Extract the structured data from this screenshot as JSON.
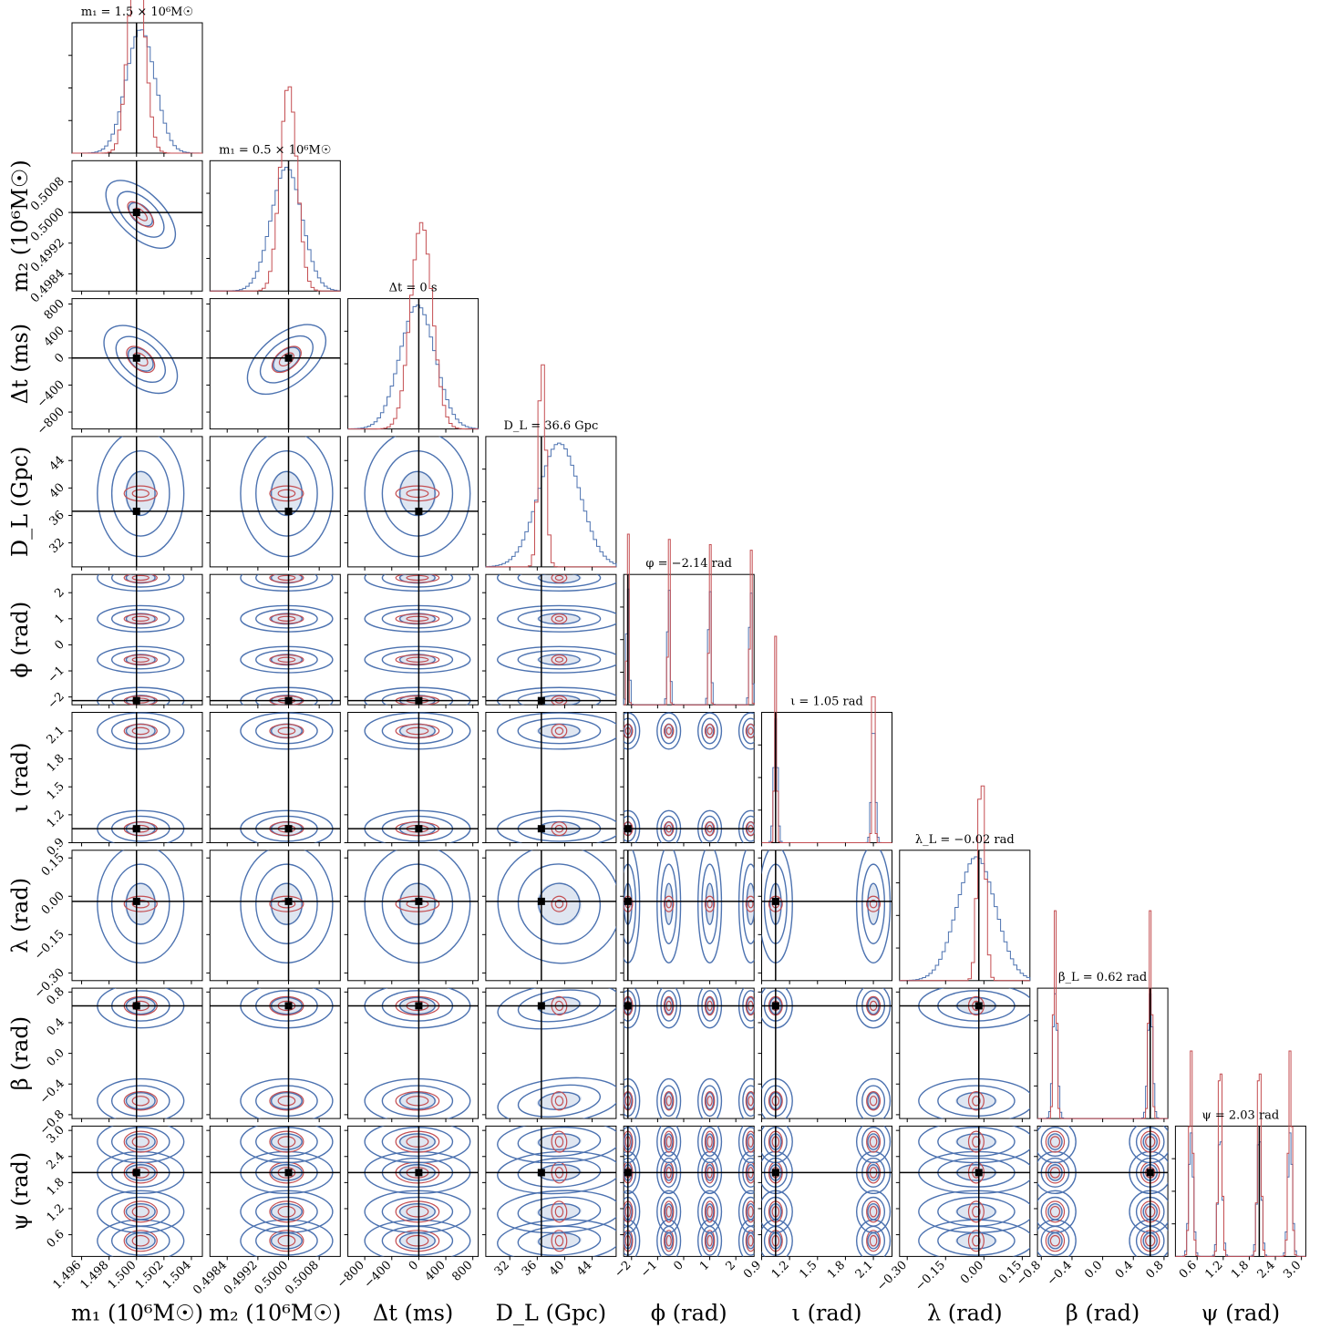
{
  "chart_data": {
    "type": "corner",
    "colors": {
      "primary": "#4c72b0",
      "secondary": "#c44e52",
      "truth": "#000000"
    },
    "params": [
      {
        "id": "m1",
        "label": "m₁ (10⁶M☉)",
        "title": "m₁ = 1.5 × 10⁶M☉",
        "truth": 1.5,
        "range": [
          1.4953,
          1.5048
        ],
        "ticks": [
          1.496,
          1.498,
          1.5,
          1.502,
          1.504
        ],
        "tick_labels": [
          "1.496",
          "1.498",
          "1.500",
          "1.502",
          "1.504"
        ],
        "mode": [
          1.5003,
          1.5
        ],
        "wide": [
          0.00105,
          0.0006
        ],
        "gauss": [
          1.5003
        ]
      },
      {
        "id": "m2",
        "label": "m₂ (10⁶M☉)",
        "title": "m₁ = 0.5 × 10⁶M☉",
        "truth": 0.5,
        "range": [
          0.49795,
          0.50135
        ],
        "ticks": [
          0.4984,
          0.4992,
          0.5,
          0.5008
        ],
        "tick_labels": [
          "0.4984",
          "0.4992",
          "0.5000",
          "0.5008"
        ],
        "mode": [
          0.49995,
          0.5
        ],
        "wide": [
          0.0004,
          0.00022
        ],
        "gauss": [
          0.49995
        ]
      },
      {
        "id": "dt",
        "label": "Δt (ms)",
        "title": "Δt = 0 s",
        "truth": 0,
        "range": [
          -1050,
          880
        ],
        "ticks": [
          -800,
          -400,
          0,
          400,
          800
        ],
        "tick_labels": [
          "−800",
          "−400",
          "0",
          "400",
          "800"
        ],
        "mode": [
          -20,
          40
        ],
        "wide": [
          260,
          160
        ],
        "gauss": [
          -20
        ]
      },
      {
        "id": "dl",
        "label": "D_L (Gpc)",
        "title": "D_L = 36.6 Gpc",
        "truth": 36.6,
        "range": [
          28.5,
          47.5
        ],
        "ticks": [
          32,
          36,
          40,
          44
        ],
        "tick_labels": [
          "32",
          "36",
          "40",
          "44"
        ],
        "mode": [
          39.2,
          36.7
        ],
        "wide": [
          3.0,
          0.55
        ],
        "gauss": [
          39.2
        ]
      },
      {
        "id": "phi",
        "label": "ϕ (rad)",
        "title": "φ = −2.14 rad",
        "truth": -2.14,
        "range": [
          -2.3,
          2.7
        ],
        "ticks": [
          -2,
          -1,
          0,
          1,
          2
        ],
        "tick_labels": [
          "−2",
          "−1",
          "0",
          "1",
          "2"
        ],
        "mode": [
          -2.14,
          -2.14
        ],
        "wide": [
          0.05,
          0.03
        ],
        "multi": [
          -2.14,
          -0.57,
          1.0,
          2.57
        ]
      },
      {
        "id": "iota",
        "label": "ι (rad)",
        "title": "ι = 1.05 rad",
        "truth": 1.05,
        "range": [
          0.9,
          2.3
        ],
        "ticks": [
          0.9,
          1.2,
          1.5,
          1.8,
          2.1
        ],
        "tick_labels": [
          "0.9",
          "1.2",
          "1.5",
          "1.8",
          "2.1"
        ],
        "mode": [
          1.05,
          1.05
        ],
        "wide": [
          0.02,
          0.012
        ],
        "multi": [
          1.05,
          2.1
        ]
      },
      {
        "id": "lam",
        "label": "λ (rad)",
        "title": "λ_L = −0.02 rad",
        "truth": -0.02,
        "range": [
          -0.33,
          0.18
        ],
        "ticks": [
          -0.3,
          -0.15,
          0.0,
          0.15
        ],
        "tick_labels": [
          "−0.30",
          "−0.15",
          "0.00",
          "0.15"
        ],
        "mode": [
          -0.03,
          -0.01
        ],
        "wide": [
          0.075,
          0.015
        ],
        "gauss": [
          -0.03
        ]
      },
      {
        "id": "beta",
        "label": "β (rad)",
        "title": "β_L = 0.62 rad",
        "truth": 0.62,
        "range": [
          -0.85,
          0.85
        ],
        "ticks": [
          -0.8,
          -0.4,
          0.0,
          0.4,
          0.8
        ],
        "tick_labels": [
          "−0.8",
          "−0.4",
          "0.0",
          "0.4",
          "0.8"
        ],
        "mode": [
          0.62,
          0.62
        ],
        "wide": [
          0.03,
          0.02
        ],
        "multi": [
          -0.62,
          0.62
        ]
      },
      {
        "id": "psi",
        "label": "ψ (rad)",
        "title": "ψ = 2.03 rad",
        "truth": 2.03,
        "range": [
          0.1,
          3.1
        ],
        "ticks": [
          0.6,
          1.2,
          1.8,
          2.4,
          3.0
        ],
        "tick_labels": [
          "0.6",
          "1.2",
          "1.8",
          "2.4",
          "3.0"
        ],
        "mode": [
          2.03,
          2.03
        ],
        "wide": [
          0.05,
          0.04
        ],
        "multi": [
          0.46,
          1.13,
          2.03,
          2.74
        ]
      }
    ]
  }
}
